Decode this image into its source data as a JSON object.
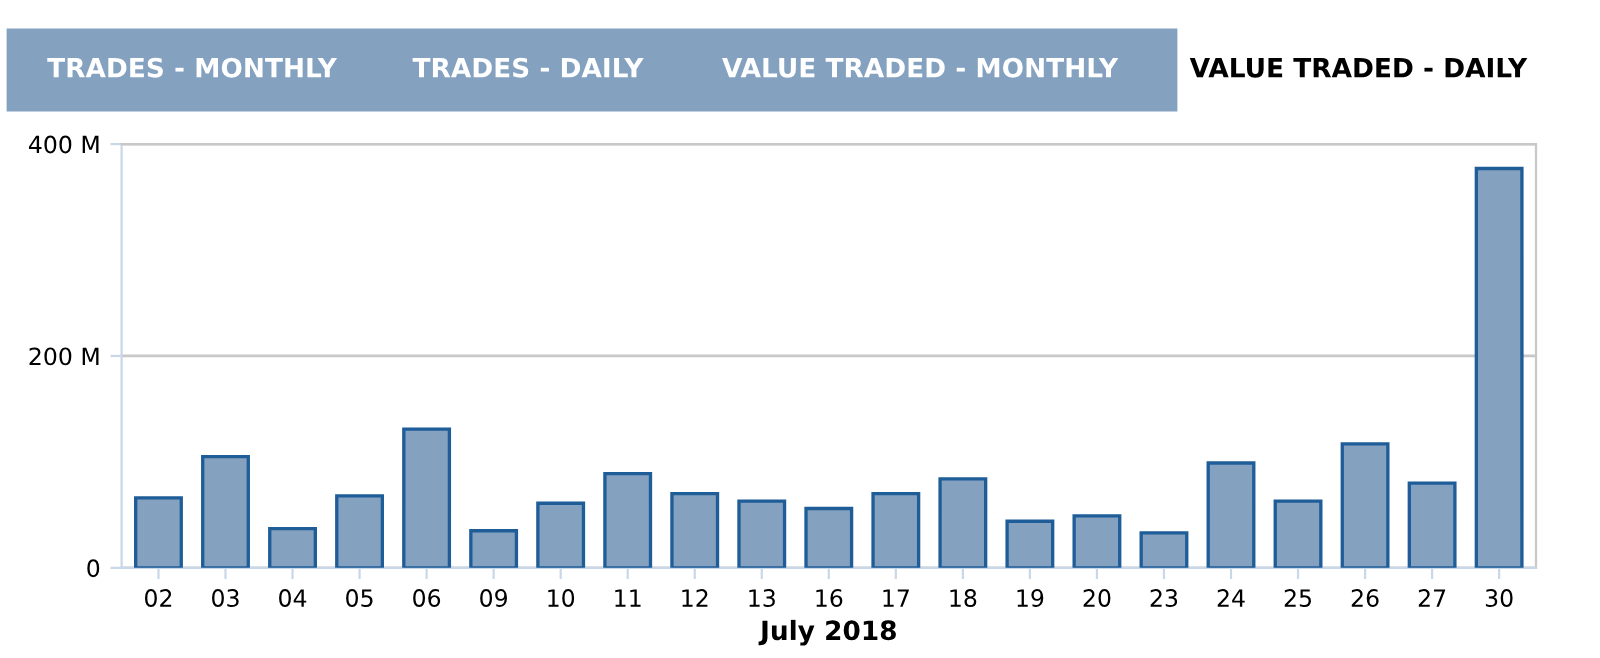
{
  "chart_data": {
    "type": "bar",
    "title": "VALUE TRADED - DAILY",
    "annotations": [
      "TRADES - MONTHLY",
      "TRADES - DAILY",
      "VALUE TRADED - MONTHLY"
    ],
    "xlabel": "July 2018",
    "categories": [
      "02",
      "03",
      "04",
      "05",
      "06",
      "09",
      "10",
      "11",
      "12",
      "13",
      "16",
      "17",
      "18",
      "19",
      "20",
      "23",
      "24",
      "25",
      "26",
      "27",
      "30"
    ],
    "values": [
      66,
      105,
      37,
      68,
      131,
      35,
      61,
      89,
      70,
      63,
      56,
      70,
      84,
      44,
      49,
      33,
      99,
      63,
      117,
      80,
      377
    ],
    "color": "#84a2c0",
    "ylim": [
      0,
      400
    ],
    "yticks": [
      0,
      {
        "value": 200,
        "label": "200 M"
      },
      {
        "value": 400,
        "label": "400 M"
      }
    ],
    "grid": "y",
    "legend": false
  }
}
